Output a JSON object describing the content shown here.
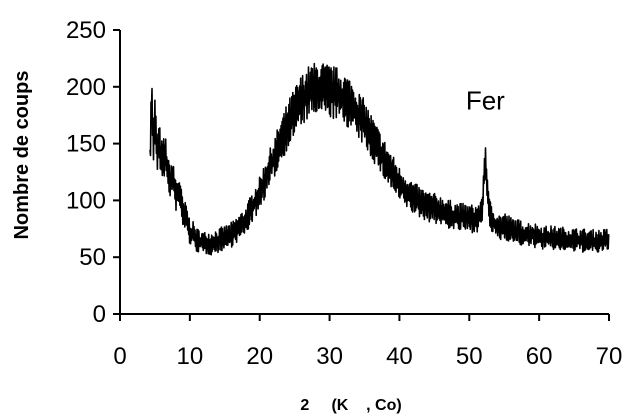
{
  "chart_data": {
    "type": "line",
    "title": "",
    "xlabel": "2     (K    , Co)",
    "ylabel": "Nombre de coups",
    "xlim": [
      0,
      70
    ],
    "ylim": [
      0,
      250
    ],
    "xticks": [
      0,
      10,
      20,
      30,
      40,
      50,
      60,
      70
    ],
    "yticks": [
      0,
      50,
      100,
      150,
      200,
      250
    ],
    "grid": false,
    "legend": "none",
    "line_color": "#000000",
    "annotations": [
      {
        "text": "Fer",
        "x": 52.3,
        "y": 188
      }
    ],
    "series": [
      {
        "points": [
          [
            4.3,
            140
          ],
          [
            4.5,
            192
          ],
          [
            4.8,
            150
          ],
          [
            5,
            172
          ],
          [
            5.3,
            140
          ],
          [
            5.6,
            150
          ],
          [
            6,
            135
          ],
          [
            6.5,
            140
          ],
          [
            7,
            118
          ],
          [
            7.5,
            120
          ],
          [
            8,
            105
          ],
          [
            8.5,
            108
          ],
          [
            9,
            88
          ],
          [
            9.5,
            85
          ],
          [
            10,
            72
          ],
          [
            10.5,
            70
          ],
          [
            11,
            65
          ],
          [
            11.5,
            64
          ],
          [
            12,
            62
          ],
          [
            12.5,
            63
          ],
          [
            13,
            62
          ],
          [
            13.5,
            64
          ],
          [
            14,
            64
          ],
          [
            14.5,
            66
          ],
          [
            15,
            67
          ],
          [
            16,
            70
          ],
          [
            17,
            76
          ],
          [
            18,
            82
          ],
          [
            19,
            95
          ],
          [
            20,
            106
          ],
          [
            21,
            122
          ],
          [
            22,
            136
          ],
          [
            23,
            152
          ],
          [
            24,
            166
          ],
          [
            25,
            178
          ],
          [
            26,
            188
          ],
          [
            27,
            195
          ],
          [
            28,
            198
          ],
          [
            29,
            198
          ],
          [
            30,
            196
          ],
          [
            31,
            194
          ],
          [
            32,
            190
          ],
          [
            33,
            185
          ],
          [
            34,
            176
          ],
          [
            35,
            168
          ],
          [
            36,
            156
          ],
          [
            37,
            145
          ],
          [
            38,
            134
          ],
          [
            39,
            124
          ],
          [
            40,
            114
          ],
          [
            41,
            108
          ],
          [
            42,
            102
          ],
          [
            43,
            98
          ],
          [
            44,
            95
          ],
          [
            45,
            93
          ],
          [
            46,
            91
          ],
          [
            47,
            88
          ],
          [
            48,
            86
          ],
          [
            49,
            85
          ],
          [
            50,
            84
          ],
          [
            51,
            84
          ],
          [
            51.8,
            88
          ],
          [
            52.3,
            138
          ],
          [
            52.8,
            90
          ],
          [
            53.5,
            80
          ],
          [
            54.5,
            76
          ],
          [
            55,
            78
          ],
          [
            56,
            74
          ],
          [
            57,
            72
          ],
          [
            58,
            70
          ],
          [
            59,
            70
          ],
          [
            60,
            68
          ],
          [
            61,
            67
          ],
          [
            62,
            67
          ],
          [
            63,
            66
          ],
          [
            64,
            66
          ],
          [
            65,
            65
          ],
          [
            66,
            65
          ],
          [
            67,
            64
          ],
          [
            68,
            64
          ],
          [
            69,
            64
          ],
          [
            70,
            65
          ]
        ]
      }
    ]
  }
}
